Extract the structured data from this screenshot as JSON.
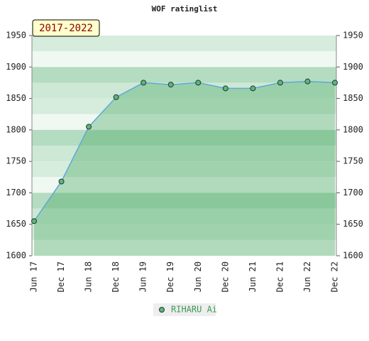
{
  "chart_data": {
    "type": "area",
    "title": "WOF ratinglist",
    "annotation": "2017-2022",
    "categories": [
      "Jun 17",
      "Dec 17",
      "Jun 18",
      "Dec 18",
      "Jun 19",
      "Dec 19",
      "Jun 20",
      "Dec 20",
      "Jun 21",
      "Dec 21",
      "Jun 22",
      "Dec 22"
    ],
    "series": [
      {
        "name": "RIHARU Ai",
        "color": "#5fa8d8",
        "marker_color": "#5cb870",
        "values": [
          1655,
          1718,
          1805,
          1852,
          1875,
          1872,
          1875,
          1866,
          1866,
          1875,
          1877,
          1875
        ]
      }
    ],
    "ylim": [
      1600,
      1950
    ],
    "yticks": [
      1600,
      1650,
      1700,
      1750,
      1800,
      1850,
      1900,
      1950
    ],
    "y2lim": [
      1600,
      1950
    ],
    "y2ticks": [
      1600,
      1650,
      1700,
      1750,
      1800,
      1850,
      1900,
      1950
    ],
    "grid": true
  }
}
